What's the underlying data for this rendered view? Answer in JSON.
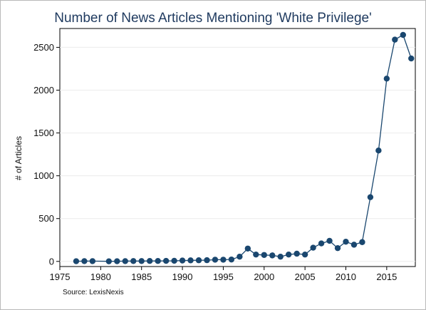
{
  "chart_data": {
    "type": "line",
    "title": "Number of News Articles Mentioning 'White Privilege'",
    "xlabel": "",
    "ylabel": "# of Articles",
    "source": "Source: LexisNexis",
    "xlim": [
      1975,
      2018.5
    ],
    "ylim": [
      -60,
      2720
    ],
    "x_ticks": [
      1975,
      1980,
      1985,
      1990,
      1995,
      2000,
      2005,
      2010,
      2015
    ],
    "y_ticks": [
      0,
      500,
      1000,
      1500,
      2000,
      2500
    ],
    "grid": true,
    "color": "#1a476f",
    "series": [
      {
        "x": [
          1977,
          1978,
          1979,
          1981,
          1982,
          1983,
          1984,
          1985,
          1986,
          1987,
          1988,
          1989,
          1990,
          1991,
          1992,
          1993,
          1994,
          1995,
          1996,
          1997,
          1998,
          1999,
          2000,
          2001,
          2002,
          2003,
          2004,
          2005,
          2006,
          2007,
          2008,
          2009,
          2010,
          2011,
          2012,
          2013,
          2014,
          2015,
          2016,
          2017,
          2018
        ],
        "y": [
          2,
          3,
          3,
          1,
          2,
          3,
          4,
          4,
          5,
          5,
          6,
          7,
          10,
          12,
          13,
          14,
          20,
          20,
          22,
          55,
          150,
          80,
          75,
          70,
          55,
          80,
          90,
          80,
          160,
          210,
          240,
          155,
          230,
          195,
          225,
          750,
          1295,
          2135,
          2590,
          2645,
          2370
        ]
      }
    ]
  }
}
